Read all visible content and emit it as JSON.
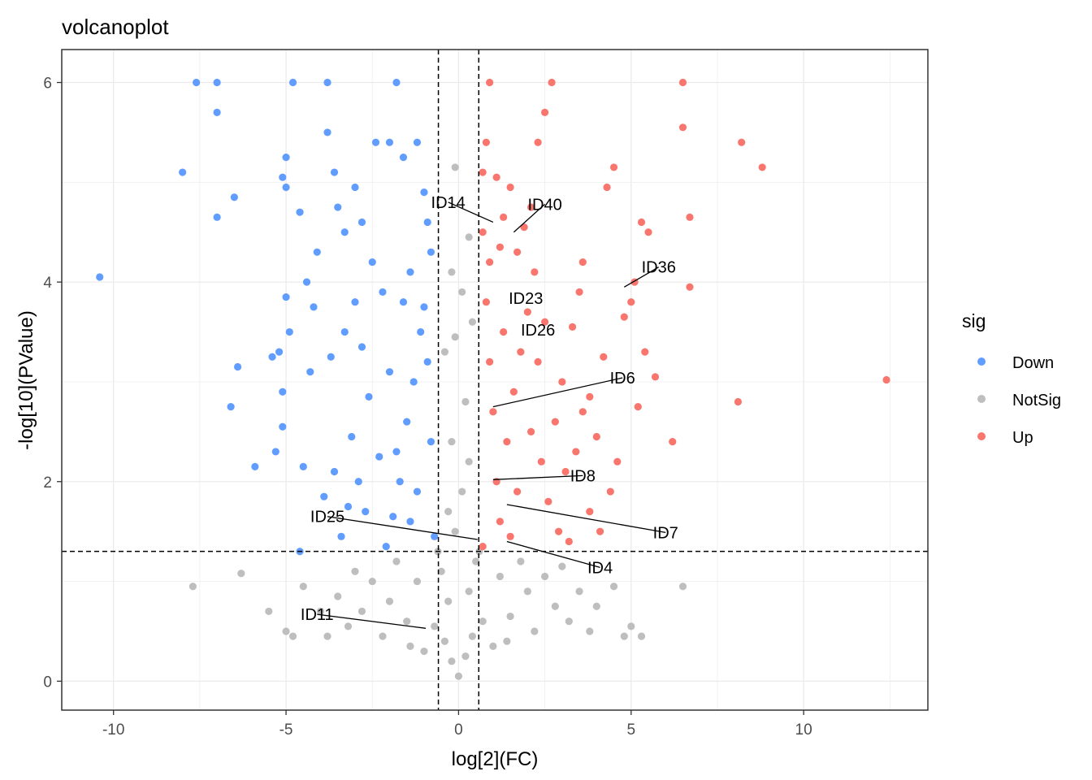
{
  "chart_data": {
    "type": "scatter",
    "title": "volcanoplot",
    "xlabel": "log[2](FC)",
    "ylabel": "-log[10](PValue)",
    "xlim": [
      -11.5,
      13.6
    ],
    "ylim": [
      -0.29,
      6.33
    ],
    "x_ticks": [
      -10,
      -5,
      0,
      5,
      10
    ],
    "y_ticks": [
      0,
      2,
      4,
      6
    ],
    "grid": true,
    "thresholds": {
      "x": [
        -0.585,
        0.585
      ],
      "y": 1.301
    },
    "legend": {
      "title": "sig",
      "position": "right",
      "entries": [
        {
          "label": "Down",
          "color": "#619CFF"
        },
        {
          "label": "NotSig",
          "color": "#BEBEBE"
        },
        {
          "label": "Up",
          "color": "#F8766D"
        }
      ]
    },
    "series": [
      {
        "name": "Down",
        "color": "#619CFF",
        "points": [
          [
            -10.4,
            4.05
          ],
          [
            -8.0,
            5.1
          ],
          [
            -7.6,
            6.0
          ],
          [
            -7.0,
            6.0
          ],
          [
            -7.0,
            5.7
          ],
          [
            -7.0,
            4.65
          ],
          [
            -6.5,
            4.85
          ],
          [
            -6.4,
            3.15
          ],
          [
            -6.6,
            2.75
          ],
          [
            -5.9,
            2.15
          ],
          [
            -5.3,
            2.3
          ],
          [
            -5.1,
            2.9
          ],
          [
            -5.1,
            2.55
          ],
          [
            -5.2,
            3.3
          ],
          [
            -5.4,
            3.25
          ],
          [
            -4.9,
            3.5
          ],
          [
            -5.0,
            3.85
          ],
          [
            -4.8,
            6.0
          ],
          [
            -5.0,
            4.95
          ],
          [
            -5.1,
            5.05
          ],
          [
            -5.0,
            5.25
          ],
          [
            -4.6,
            4.7
          ],
          [
            -4.4,
            4.0
          ],
          [
            -4.2,
            3.75
          ],
          [
            -4.3,
            3.1
          ],
          [
            -4.5,
            2.15
          ],
          [
            -4.6,
            1.3
          ],
          [
            -3.8,
            6.0
          ],
          [
            -3.8,
            5.5
          ],
          [
            -3.6,
            5.1
          ],
          [
            -3.5,
            4.75
          ],
          [
            -3.3,
            4.5
          ],
          [
            -3.0,
            4.95
          ],
          [
            -2.8,
            4.6
          ],
          [
            -2.5,
            4.2
          ],
          [
            -2.4,
            5.4
          ],
          [
            -2.0,
            5.4
          ],
          [
            -1.8,
            6.0
          ],
          [
            -1.6,
            5.25
          ],
          [
            -1.2,
            5.4
          ],
          [
            -1.0,
            4.9
          ],
          [
            -0.9,
            4.6
          ],
          [
            -0.8,
            4.3
          ],
          [
            -1.0,
            3.75
          ],
          [
            -1.1,
            3.5
          ],
          [
            -1.3,
            3.0
          ],
          [
            -1.5,
            2.6
          ],
          [
            -1.7,
            2.0
          ],
          [
            -1.9,
            1.65
          ],
          [
            -2.1,
            1.35
          ],
          [
            -2.3,
            2.25
          ],
          [
            -2.6,
            2.85
          ],
          [
            -2.8,
            3.35
          ],
          [
            -3.0,
            3.8
          ],
          [
            -3.1,
            2.45
          ],
          [
            -3.2,
            1.75
          ],
          [
            -3.4,
            1.45
          ],
          [
            -3.6,
            2.1
          ],
          [
            -3.7,
            3.25
          ],
          [
            -3.9,
            1.85
          ],
          [
            -2.0,
            3.1
          ],
          [
            -1.6,
            3.8
          ],
          [
            -1.4,
            4.1
          ],
          [
            -2.2,
            3.9
          ],
          [
            -0.7,
            1.45
          ],
          [
            -0.8,
            2.4
          ],
          [
            -0.9,
            3.2
          ],
          [
            -1.2,
            1.9
          ],
          [
            -1.4,
            1.6
          ],
          [
            -1.8,
            2.3
          ],
          [
            -2.7,
            1.7
          ],
          [
            -2.9,
            2.0
          ],
          [
            -3.3,
            3.5
          ],
          [
            -4.1,
            4.3
          ]
        ]
      },
      {
        "name": "NotSig",
        "color": "#BEBEBE",
        "points": [
          [
            0.0,
            0.05
          ],
          [
            -0.2,
            0.2
          ],
          [
            0.2,
            0.25
          ],
          [
            -0.4,
            0.4
          ],
          [
            0.4,
            0.45
          ],
          [
            -0.3,
            0.8
          ],
          [
            0.3,
            0.9
          ],
          [
            -0.5,
            1.1
          ],
          [
            0.5,
            1.2
          ],
          [
            -0.1,
            1.5
          ],
          [
            0.1,
            1.9
          ],
          [
            -0.2,
            2.4
          ],
          [
            0.2,
            2.8
          ],
          [
            -0.4,
            3.3
          ],
          [
            0.4,
            3.6
          ],
          [
            -0.2,
            4.1
          ],
          [
            0.3,
            4.45
          ],
          [
            -0.1,
            5.15
          ],
          [
            -1.0,
            0.3
          ],
          [
            1.0,
            0.35
          ],
          [
            -1.5,
            0.6
          ],
          [
            1.5,
            0.65
          ],
          [
            -2.0,
            0.8
          ],
          [
            2.0,
            0.9
          ],
          [
            -2.5,
            1.0
          ],
          [
            2.5,
            1.05
          ],
          [
            -3.0,
            1.1
          ],
          [
            3.0,
            1.15
          ],
          [
            -3.5,
            0.85
          ],
          [
            3.5,
            0.9
          ],
          [
            -4.0,
            0.7
          ],
          [
            4.0,
            0.75
          ],
          [
            -4.5,
            0.95
          ],
          [
            4.5,
            0.95
          ],
          [
            -5.0,
            0.5
          ],
          [
            5.0,
            0.55
          ],
          [
            -5.5,
            0.7
          ],
          [
            5.3,
            0.45
          ],
          [
            -6.3,
            1.08
          ],
          [
            -7.7,
            0.95
          ],
          [
            6.5,
            0.95
          ],
          [
            -1.2,
            1.0
          ],
          [
            1.2,
            1.05
          ],
          [
            -2.2,
            0.45
          ],
          [
            2.2,
            0.5
          ],
          [
            -3.2,
            0.55
          ],
          [
            3.2,
            0.6
          ],
          [
            -0.7,
            0.55
          ],
          [
            0.7,
            0.6
          ],
          [
            -1.8,
            1.2
          ],
          [
            1.8,
            1.2
          ],
          [
            -2.8,
            0.7
          ],
          [
            2.8,
            0.75
          ],
          [
            -3.8,
            0.45
          ],
          [
            3.8,
            0.5
          ],
          [
            -4.8,
            0.45
          ],
          [
            4.8,
            0.45
          ],
          [
            -0.6,
            1.3
          ],
          [
            0.6,
            1.3
          ],
          [
            -1.4,
            0.35
          ],
          [
            1.4,
            0.4
          ],
          [
            -0.3,
            1.7
          ],
          [
            0.3,
            2.2
          ],
          [
            0.1,
            3.9
          ],
          [
            -0.1,
            3.45
          ]
        ]
      },
      {
        "name": "Up",
        "color": "#F8766D",
        "points": [
          [
            12.4,
            3.02
          ],
          [
            8.8,
            5.15
          ],
          [
            8.2,
            5.4
          ],
          [
            8.1,
            2.8
          ],
          [
            6.7,
            4.65
          ],
          [
            6.7,
            3.95
          ],
          [
            6.5,
            6.0
          ],
          [
            6.5,
            5.55
          ],
          [
            6.2,
            2.4
          ],
          [
            5.7,
            3.05
          ],
          [
            5.5,
            4.5
          ],
          [
            5.3,
            4.6
          ],
          [
            5.2,
            2.75
          ],
          [
            5.1,
            4.0
          ],
          [
            5.0,
            3.8
          ],
          [
            5.4,
            3.3
          ],
          [
            4.8,
            3.65
          ],
          [
            4.5,
            5.15
          ],
          [
            4.3,
            4.95
          ],
          [
            4.2,
            3.25
          ],
          [
            4.0,
            2.45
          ],
          [
            3.8,
            2.85
          ],
          [
            3.6,
            4.2
          ],
          [
            3.5,
            3.9
          ],
          [
            3.3,
            3.55
          ],
          [
            3.1,
            2.1
          ],
          [
            2.9,
            1.5
          ],
          [
            2.7,
            6.0
          ],
          [
            2.5,
            5.7
          ],
          [
            2.3,
            5.4
          ],
          [
            2.1,
            4.75
          ],
          [
            1.9,
            4.55
          ],
          [
            1.7,
            4.3
          ],
          [
            1.5,
            4.95
          ],
          [
            1.3,
            4.65
          ],
          [
            1.1,
            5.05
          ],
          [
            0.9,
            6.0
          ],
          [
            0.8,
            5.4
          ],
          [
            0.7,
            5.1
          ],
          [
            0.7,
            4.5
          ],
          [
            0.8,
            3.8
          ],
          [
            0.9,
            3.2
          ],
          [
            1.0,
            2.7
          ],
          [
            1.1,
            2.0
          ],
          [
            1.2,
            1.6
          ],
          [
            0.7,
            1.35
          ],
          [
            1.4,
            2.4
          ],
          [
            1.6,
            2.9
          ],
          [
            1.8,
            3.3
          ],
          [
            2.0,
            3.7
          ],
          [
            2.2,
            4.1
          ],
          [
            2.4,
            2.2
          ],
          [
            2.6,
            1.8
          ],
          [
            2.8,
            2.6
          ],
          [
            3.0,
            3.0
          ],
          [
            3.2,
            1.4
          ],
          [
            3.4,
            2.3
          ],
          [
            3.6,
            2.7
          ],
          [
            3.8,
            1.7
          ],
          [
            4.1,
            1.5
          ],
          [
            4.4,
            1.9
          ],
          [
            4.6,
            2.2
          ],
          [
            1.5,
            1.45
          ],
          [
            1.7,
            1.9
          ],
          [
            2.1,
            2.5
          ],
          [
            2.3,
            3.2
          ],
          [
            2.5,
            3.6
          ],
          [
            1.3,
            3.5
          ],
          [
            0.9,
            4.2
          ],
          [
            1.2,
            4.35
          ]
        ]
      }
    ],
    "labels": [
      {
        "text": "ID14",
        "lx": -0.3,
        "ly": 4.8,
        "px": 1.0,
        "py": 4.6
      },
      {
        "text": "ID40",
        "lx": 2.5,
        "ly": 4.78,
        "px": 1.6,
        "py": 4.5
      },
      {
        "text": "ID36",
        "lx": 5.8,
        "ly": 4.15,
        "px": 4.8,
        "py": 3.95
      },
      {
        "text": "ID23",
        "lx": 1.95,
        "ly": 3.84
      },
      {
        "text": "ID26",
        "lx": 2.3,
        "ly": 3.52
      },
      {
        "text": "ID6",
        "lx": 4.75,
        "ly": 3.04,
        "px": 1.0,
        "py": 2.75
      },
      {
        "text": "ID8",
        "lx": 3.6,
        "ly": 2.06,
        "px": 1.0,
        "py": 2.02
      },
      {
        "text": "ID7",
        "lx": 6.0,
        "ly": 1.49,
        "px": 1.4,
        "py": 1.77
      },
      {
        "text": "ID25",
        "lx": -3.8,
        "ly": 1.65,
        "px": 0.55,
        "py": 1.42
      },
      {
        "text": "ID4",
        "lx": 4.1,
        "ly": 1.14,
        "px": 1.4,
        "py": 1.4
      },
      {
        "text": "ID11",
        "lx": -4.1,
        "ly": 0.67,
        "px": -0.95,
        "py": 0.53
      }
    ]
  }
}
